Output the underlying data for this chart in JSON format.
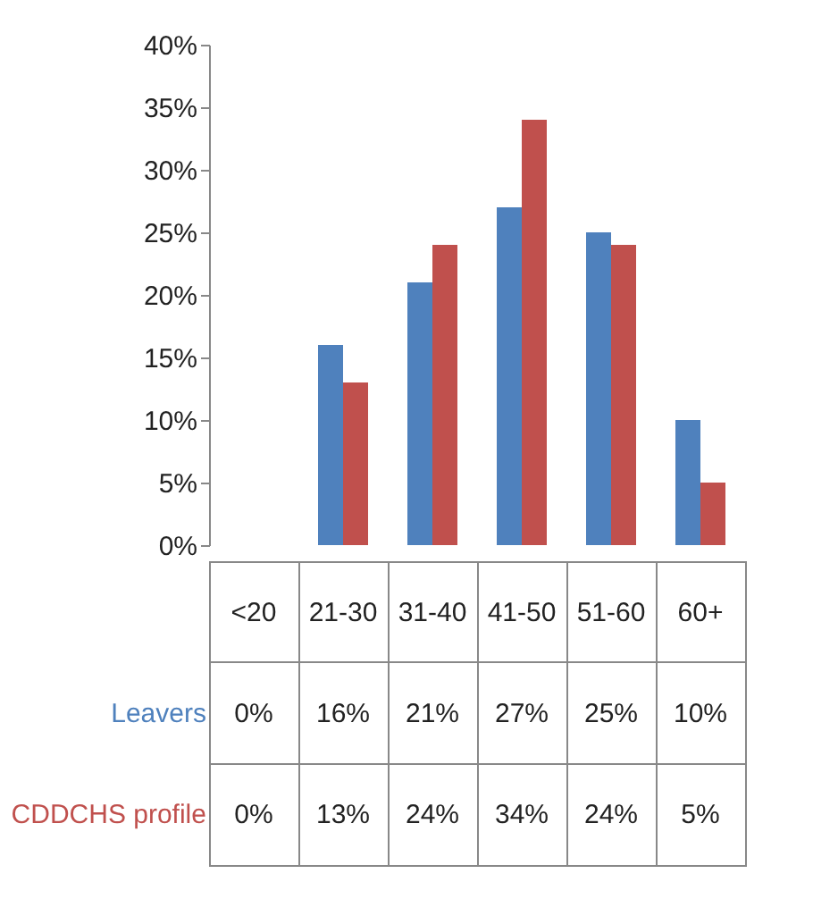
{
  "chart_data": {
    "type": "bar",
    "categories": [
      "<20",
      "21-30",
      "31-40",
      "41-50",
      "51-60",
      "60+"
    ],
    "series": [
      {
        "name": "Leavers",
        "color": "#4f81bd",
        "values": [
          0,
          16,
          21,
          27,
          25,
          10
        ],
        "value_labels": [
          "0%",
          "16%",
          "21%",
          "27%",
          "25%",
          "10%"
        ]
      },
      {
        "name": "CDDCHS profile",
        "color": "#c0504d",
        "values": [
          0,
          13,
          24,
          34,
          24,
          5
        ],
        "value_labels": [
          "0%",
          "13%",
          "24%",
          "34%",
          "24%",
          "5%"
        ]
      }
    ],
    "ylim": [
      0,
      40
    ],
    "yticks": [
      {
        "value": 0,
        "label": "0%"
      },
      {
        "value": 5,
        "label": "5%"
      },
      {
        "value": 10,
        "label": "10%"
      },
      {
        "value": 15,
        "label": "15%"
      },
      {
        "value": 20,
        "label": "20%"
      },
      {
        "value": 25,
        "label": "25%"
      },
      {
        "value": 30,
        "label": "30%"
      },
      {
        "value": 35,
        "label": "35%"
      },
      {
        "value": 40,
        "label": "40%"
      }
    ],
    "legend": false
  }
}
